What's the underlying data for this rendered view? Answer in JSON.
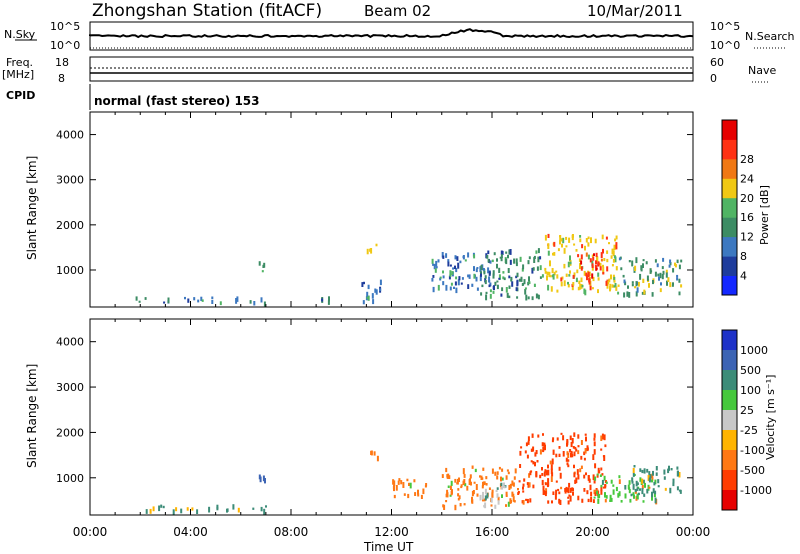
{
  "header": {
    "station": "Zhongshan Station (fitACF)",
    "beam": "Beam 02",
    "date": "10/Mar/2011"
  },
  "top_panels": {
    "nsky_label": "N.Sky",
    "nsky_ticks": [
      "10^5",
      "10^0"
    ],
    "nsearch_label": "N.Search",
    "nsearch_ticks": [
      "10^5",
      "10^0"
    ],
    "freq_label": "Freq.",
    "freq_unit": "[MHz]",
    "freq_ticks": [
      "18",
      "8"
    ],
    "nave_label": "Nave",
    "nave_ticks": [
      "60",
      "0"
    ],
    "cpid_label": "CPID",
    "cpid_text": "normal (fast stereo) 153"
  },
  "axes": {
    "xlabel": "Time UT",
    "xticks": [
      "00:00",
      "04:00",
      "08:00",
      "12:00",
      "16:00",
      "20:00",
      "00:00"
    ],
    "ylabel": "Slant Range [km]",
    "yticks": [
      "1000",
      "2000",
      "3000",
      "4000"
    ]
  },
  "power_scale": {
    "label": "Power [dB]",
    "ticks": [
      "4",
      "8",
      "12",
      "16",
      "20",
      "24",
      "28"
    ],
    "colors": [
      "#1428ff",
      "#1e3c9c",
      "#3c78c0",
      "#3c8c64",
      "#50b464",
      "#f0c814",
      "#f07814",
      "#ff3214",
      "#e60000"
    ]
  },
  "velocity_scale": {
    "label": "Velocity [m s⁻¹]",
    "ticks": [
      "1000",
      "500",
      "100",
      "25",
      "-25",
      "-100",
      "-500",
      "-1000"
    ],
    "colors": [
      "#1e32c8",
      "#3c64b4",
      "#3c8c78",
      "#46c83c",
      "#c8c8c8",
      "#ffb400",
      "#ff7814",
      "#ff3c00",
      "#e60000"
    ]
  },
  "chart_data": [
    {
      "type": "heatmap",
      "title": "Power",
      "xlabel": "Time UT",
      "ylabel": "Slant Range [km]",
      "xlim": [
        0,
        24
      ],
      "ylim": [
        180,
        4500
      ],
      "colorbar_label": "Power [dB]",
      "colorbar_ticks": [
        4,
        8,
        12,
        16,
        20,
        24,
        28
      ],
      "regions": [
        {
          "t": [
            1.8,
            3.2
          ],
          "r": [
            300,
            420
          ],
          "value": 10
        },
        {
          "t": [
            3.5,
            6.0
          ],
          "r": [
            300,
            420
          ],
          "value": 8
        },
        {
          "t": [
            6.3,
            7.0
          ],
          "r": [
            300,
            420
          ],
          "value": 12
        },
        {
          "t": [
            6.7,
            7.0
          ],
          "r": [
            900,
            1200
          ],
          "value": 10
        },
        {
          "t": [
            9.0,
            9.6
          ],
          "r": [
            300,
            420
          ],
          "value": 10
        },
        {
          "t": [
            11.0,
            11.5
          ],
          "r": [
            1450,
            1650
          ],
          "value": 20
        },
        {
          "t": [
            10.8,
            11.6
          ],
          "r": [
            300,
            800
          ],
          "value": 8
        },
        {
          "t": [
            13.5,
            16.0
          ],
          "r": [
            600,
            1400
          ],
          "value": 8
        },
        {
          "t": [
            15.5,
            18.0
          ],
          "r": [
            400,
            1500
          ],
          "value": 10
        },
        {
          "t": [
            18.0,
            21.0
          ],
          "r": [
            500,
            1800
          ],
          "value": 20
        },
        {
          "t": [
            19.5,
            20.5
          ],
          "r": [
            800,
            1400
          ],
          "value": 28
        },
        {
          "t": [
            21.0,
            23.5
          ],
          "r": [
            500,
            1300
          ],
          "value": 12
        }
      ]
    },
    {
      "type": "heatmap",
      "title": "Velocity",
      "xlabel": "Time UT",
      "ylabel": "Slant Range [km]",
      "xlim": [
        0,
        24
      ],
      "ylim": [
        180,
        4500
      ],
      "colorbar_label": "Velocity [m s⁻¹]",
      "colorbar_ticks": [
        1000,
        500,
        100,
        25,
        -25,
        -100,
        -500,
        -1000
      ],
      "regions": [
        {
          "t": [
            1.8,
            6.0
          ],
          "r": [
            300,
            420
          ],
          "value": 100
        },
        {
          "t": [
            6.3,
            7.0
          ],
          "r": [
            300,
            420
          ],
          "value": 100
        },
        {
          "t": [
            6.7,
            7.0
          ],
          "r": [
            900,
            1200
          ],
          "value": 500
        },
        {
          "t": [
            11.0,
            11.5
          ],
          "r": [
            1450,
            1650
          ],
          "value": -100
        },
        {
          "t": [
            12.0,
            13.5
          ],
          "r": [
            600,
            1000
          ],
          "value": -100
        },
        {
          "t": [
            14.0,
            17.0
          ],
          "r": [
            400,
            1300
          ],
          "value": -100
        },
        {
          "t": [
            15.5,
            16.5
          ],
          "r": [
            400,
            900
          ],
          "value": 0
        },
        {
          "t": [
            17.0,
            20.5
          ],
          "r": [
            500,
            2000
          ],
          "value": -500
        },
        {
          "t": [
            20.0,
            22.5
          ],
          "r": [
            500,
            1100
          ],
          "value": 25
        },
        {
          "t": [
            21.5,
            23.5
          ],
          "r": [
            600,
            1300
          ],
          "value": 100
        }
      ]
    }
  ]
}
